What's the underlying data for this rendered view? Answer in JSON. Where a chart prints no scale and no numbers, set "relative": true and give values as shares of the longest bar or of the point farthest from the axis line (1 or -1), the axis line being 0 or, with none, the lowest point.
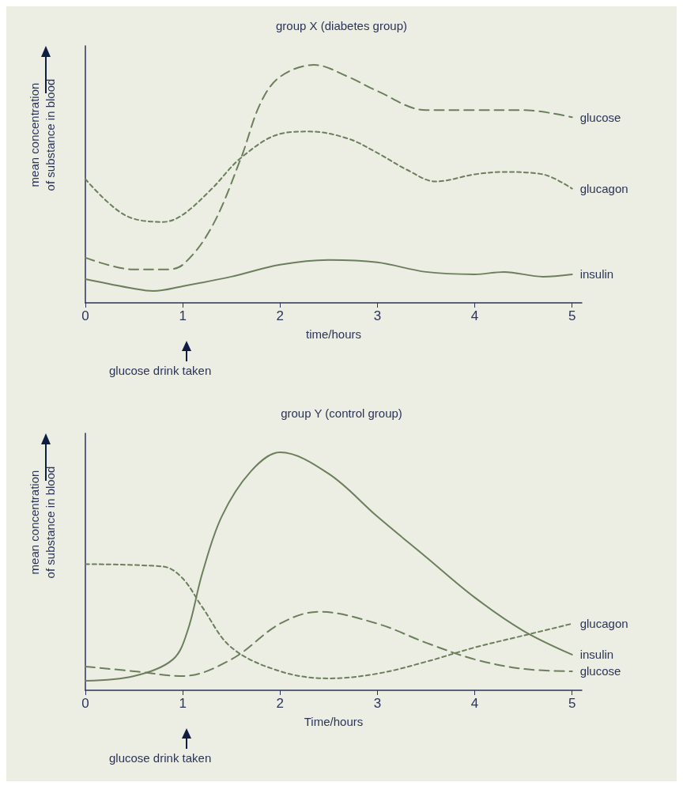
{
  "chart_data": [
    {
      "type": "line",
      "title": "group X (diabetes group)",
      "xlabel": "time/hours",
      "ylabel": "mean concentration\nof substance in blood",
      "relative": true,
      "xlim": [
        0,
        5.1
      ],
      "xticks": [
        0,
        1,
        2,
        3,
        4,
        5
      ],
      "grid": false,
      "legend": false,
      "marker": "none",
      "annotations": [
        "glucose drink taken"
      ],
      "series": [
        {
          "name": "glucose",
          "color": "#6b7f5c",
          "line_style": "dashed",
          "x": [
            0,
            0.5,
            0.8,
            1,
            1.3,
            1.6,
            1.8,
            2,
            2.35,
            2.7,
            3,
            3.5,
            4,
            4.5,
            5
          ],
          "values": [
            0.19,
            0.14,
            0.14,
            0.16,
            0.32,
            0.61,
            0.84,
            0.95,
            1,
            0.95,
            0.89,
            0.81,
            0.81,
            0.81,
            0.78
          ]
        },
        {
          "name": "glucagon",
          "color": "#6b7f5c",
          "line_style": "dotted",
          "x": [
            0,
            0.4,
            0.8,
            1,
            1.3,
            1.6,
            2,
            2.3,
            2.7,
            3,
            3.3,
            3.6,
            4,
            4.3,
            4.7,
            5
          ],
          "values": [
            0.52,
            0.37,
            0.34,
            0.37,
            0.48,
            0.61,
            0.71,
            0.72,
            0.69,
            0.63,
            0.56,
            0.51,
            0.54,
            0.55,
            0.54,
            0.48
          ]
        },
        {
          "name": "insulin",
          "color": "#6b7f5c",
          "line_style": "solid",
          "x": [
            0,
            0.5,
            0.7,
            1,
            1.5,
            2,
            2.5,
            3,
            3.5,
            4,
            4.3,
            4.7,
            5
          ],
          "values": [
            0.1,
            0.06,
            0.05,
            0.07,
            0.11,
            0.16,
            0.18,
            0.17,
            0.13,
            0.12,
            0.13,
            0.11,
            0.12
          ]
        }
      ]
    },
    {
      "type": "line",
      "title": "group Y (control group)",
      "xlabel": "Time/hours",
      "ylabel": "mean concentration\nof substance in blood",
      "relative": true,
      "xlim": [
        0,
        5.1
      ],
      "xticks": [
        0,
        1,
        2,
        3,
        4,
        5
      ],
      "grid": false,
      "legend": false,
      "marker": "none",
      "annotations": [
        "glucose drink taken"
      ],
      "series": [
        {
          "name": "glucagon",
          "color": "#6b7f5c",
          "line_style": "dotted",
          "x": [
            0,
            0.8,
            1,
            1.2,
            1.5,
            2,
            2.5,
            3,
            3.5,
            4,
            4.5,
            5
          ],
          "values": [
            0.53,
            0.52,
            0.47,
            0.35,
            0.18,
            0.08,
            0.05,
            0.07,
            0.12,
            0.18,
            0.23,
            0.28
          ]
        },
        {
          "name": "insulin",
          "color": "#6b7f5c",
          "line_style": "solid",
          "x": [
            0,
            0.5,
            0.9,
            1.05,
            1.2,
            1.4,
            1.7,
            2,
            2.5,
            3,
            3.5,
            4,
            4.5,
            5
          ],
          "values": [
            0.04,
            0.06,
            0.13,
            0.25,
            0.49,
            0.73,
            0.92,
            1,
            0.91,
            0.73,
            0.56,
            0.39,
            0.25,
            0.15
          ]
        },
        {
          "name": "glucose",
          "color": "#6b7f5c",
          "line_style": "dashed",
          "x": [
            0,
            0.5,
            1,
            1.5,
            2,
            2.4,
            3,
            3.5,
            4,
            4.5,
            5
          ],
          "values": [
            0.1,
            0.08,
            0.06,
            0.13,
            0.28,
            0.33,
            0.28,
            0.2,
            0.13,
            0.09,
            0.08
          ]
        }
      ]
    }
  ]
}
